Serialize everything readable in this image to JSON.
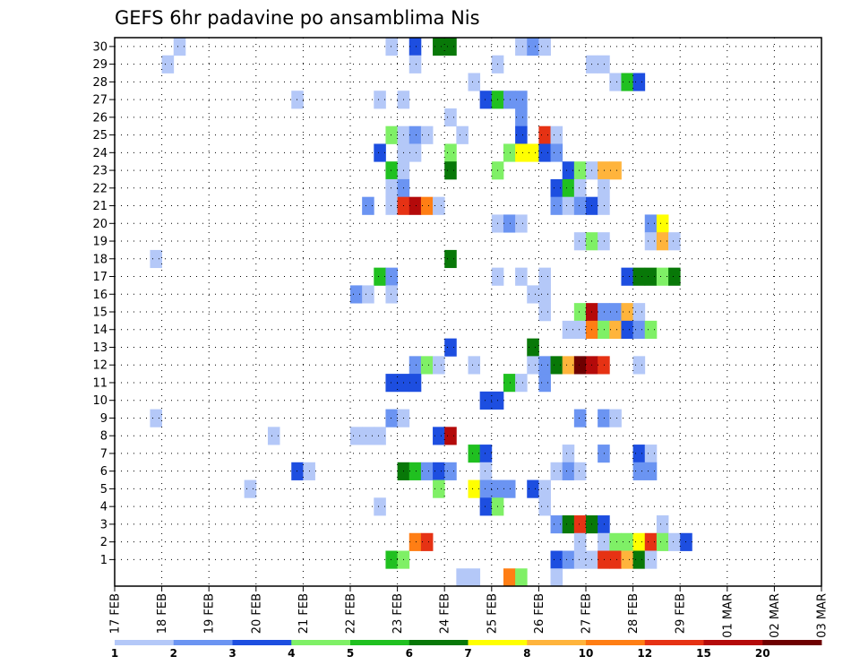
{
  "chart_data": {
    "type": "heatmap",
    "title": "GEFS 6hr padavine po ansamblima Nis",
    "xlabel": "",
    "ylabel": "",
    "x_ticks": [
      "17 FEB",
      "18 FEB",
      "19 FEB",
      "20 FEB",
      "21 FEB",
      "22 FEB",
      "23 FEB",
      "24 FEB",
      "25 FEB",
      "26 FEB",
      "27 FEB",
      "28 FEB",
      "29 FEB",
      "01 MAR",
      "02 MAR",
      "03 MAR"
    ],
    "y_ticks": [
      "1",
      "2",
      "3",
      "4",
      "5",
      "6",
      "7",
      "8",
      "9",
      "10",
      "11",
      "12",
      "13",
      "14",
      "15",
      "16",
      "17",
      "18",
      "19",
      "20",
      "21",
      "22",
      "23",
      "24",
      "25",
      "26",
      "27",
      "28",
      "29",
      "30"
    ],
    "time_steps_per_day": 4,
    "grid": "dotted",
    "legend_placement": "bottom",
    "legend": {
      "labels": [
        "1",
        "2",
        "3",
        "4",
        "5",
        "6",
        "7",
        "8",
        "10",
        "12",
        "15",
        "20"
      ],
      "colors": [
        "#b4c8f8",
        "#6b94f2",
        "#1d4ee0",
        "#7ff066",
        "#20c020",
        "#087808",
        "#ffff00",
        "#ffb43c",
        "#ff7e14",
        "#e63214",
        "#b40a0a",
        "#6e0000"
      ]
    },
    "cells_note": "each cell = [time step index from 17 FEB 00Z (6h steps), ensemble member, color class 1-12]",
    "cells": [
      [
        5,
        30,
        1
      ],
      [
        23,
        30,
        1
      ],
      [
        25,
        30,
        3
      ],
      [
        27,
        30,
        6
      ],
      [
        28,
        30,
        6
      ],
      [
        34,
        30,
        1
      ],
      [
        35,
        30,
        2
      ],
      [
        36,
        30,
        1
      ],
      [
        4,
        29,
        1
      ],
      [
        25,
        29,
        1
      ],
      [
        32,
        29,
        1
      ],
      [
        40,
        29,
        1
      ],
      [
        41,
        29,
        1
      ],
      [
        30,
        28,
        1
      ],
      [
        42,
        28,
        1
      ],
      [
        43,
        28,
        5
      ],
      [
        44,
        28,
        3
      ],
      [
        15,
        27,
        1
      ],
      [
        22,
        27,
        1
      ],
      [
        24,
        27,
        1
      ],
      [
        31,
        27,
        3
      ],
      [
        32,
        27,
        5
      ],
      [
        33,
        27,
        2
      ],
      [
        34,
        27,
        2
      ],
      [
        28,
        26,
        1
      ],
      [
        34,
        26,
        2
      ],
      [
        23,
        25,
        4
      ],
      [
        24,
        25,
        1
      ],
      [
        25,
        25,
        2
      ],
      [
        26,
        25,
        1
      ],
      [
        29,
        25,
        1
      ],
      [
        34,
        25,
        3
      ],
      [
        36,
        25,
        10
      ],
      [
        37,
        25,
        1
      ],
      [
        22,
        24,
        3
      ],
      [
        24,
        24,
        1
      ],
      [
        25,
        24,
        1
      ],
      [
        28,
        24,
        4
      ],
      [
        33,
        24,
        4
      ],
      [
        34,
        24,
        7
      ],
      [
        35,
        24,
        7
      ],
      [
        36,
        24,
        3
      ],
      [
        37,
        24,
        2
      ],
      [
        23,
        23,
        5
      ],
      [
        24,
        23,
        1
      ],
      [
        28,
        23,
        6
      ],
      [
        32,
        23,
        4
      ],
      [
        38,
        23,
        3
      ],
      [
        39,
        23,
        4
      ],
      [
        40,
        23,
        1
      ],
      [
        41,
        23,
        8
      ],
      [
        42,
        23,
        8
      ],
      [
        23,
        22,
        1
      ],
      [
        24,
        22,
        2
      ],
      [
        37,
        22,
        3
      ],
      [
        38,
        22,
        5
      ],
      [
        39,
        22,
        1
      ],
      [
        41,
        22,
        1
      ],
      [
        21,
        21,
        2
      ],
      [
        23,
        21,
        1
      ],
      [
        24,
        21,
        10
      ],
      [
        25,
        21,
        11
      ],
      [
        26,
        21,
        9
      ],
      [
        27,
        21,
        1
      ],
      [
        37,
        21,
        2
      ],
      [
        38,
        21,
        1
      ],
      [
        39,
        21,
        2
      ],
      [
        40,
        21,
        3
      ],
      [
        41,
        21,
        1
      ],
      [
        32,
        20,
        1
      ],
      [
        33,
        20,
        2
      ],
      [
        34,
        20,
        1
      ],
      [
        45,
        20,
        2
      ],
      [
        46,
        20,
        7
      ],
      [
        39,
        19,
        1
      ],
      [
        40,
        19,
        4
      ],
      [
        41,
        19,
        1
      ],
      [
        45,
        19,
        1
      ],
      [
        46,
        19,
        8
      ],
      [
        47,
        19,
        1
      ],
      [
        3,
        18,
        1
      ],
      [
        28,
        18,
        6
      ],
      [
        22,
        17,
        5
      ],
      [
        23,
        17,
        2
      ],
      [
        32,
        17,
        1
      ],
      [
        34,
        17,
        1
      ],
      [
        36,
        17,
        1
      ],
      [
        43,
        17,
        3
      ],
      [
        44,
        17,
        6
      ],
      [
        45,
        17,
        6
      ],
      [
        46,
        17,
        4
      ],
      [
        47,
        17,
        6
      ],
      [
        20,
        16,
        2
      ],
      [
        21,
        16,
        1
      ],
      [
        23,
        16,
        1
      ],
      [
        35,
        16,
        1
      ],
      [
        36,
        16,
        1
      ],
      [
        36,
        15,
        1
      ],
      [
        39,
        15,
        4
      ],
      [
        40,
        15,
        11
      ],
      [
        41,
        15,
        2
      ],
      [
        42,
        15,
        2
      ],
      [
        43,
        15,
        8
      ],
      [
        44,
        15,
        1
      ],
      [
        38,
        14,
        1
      ],
      [
        39,
        14,
        1
      ],
      [
        40,
        14,
        9
      ],
      [
        41,
        14,
        4
      ],
      [
        42,
        14,
        8
      ],
      [
        43,
        14,
        3
      ],
      [
        44,
        14,
        2
      ],
      [
        45,
        14,
        4
      ],
      [
        28,
        13,
        3
      ],
      [
        35,
        13,
        6
      ],
      [
        25,
        12,
        2
      ],
      [
        26,
        12,
        4
      ],
      [
        27,
        12,
        1
      ],
      [
        30,
        12,
        1
      ],
      [
        35,
        12,
        1
      ],
      [
        36,
        12,
        2
      ],
      [
        37,
        12,
        6
      ],
      [
        38,
        12,
        8
      ],
      [
        39,
        12,
        12
      ],
      [
        40,
        12,
        11
      ],
      [
        41,
        12,
        10
      ],
      [
        44,
        12,
        1
      ],
      [
        23,
        11,
        3
      ],
      [
        24,
        11,
        3
      ],
      [
        25,
        11,
        3
      ],
      [
        33,
        11,
        5
      ],
      [
        34,
        11,
        1
      ],
      [
        36,
        11,
        2
      ],
      [
        31,
        10,
        3
      ],
      [
        32,
        10,
        3
      ],
      [
        3,
        9,
        1
      ],
      [
        23,
        9,
        2
      ],
      [
        24,
        9,
        1
      ],
      [
        39,
        9,
        2
      ],
      [
        41,
        9,
        2
      ],
      [
        42,
        9,
        1
      ],
      [
        13,
        8,
        1
      ],
      [
        20,
        8,
        1
      ],
      [
        21,
        8,
        1
      ],
      [
        22,
        8,
        1
      ],
      [
        27,
        8,
        3
      ],
      [
        28,
        8,
        11
      ],
      [
        30,
        7,
        5
      ],
      [
        31,
        7,
        3
      ],
      [
        38,
        7,
        1
      ],
      [
        41,
        7,
        2
      ],
      [
        44,
        7,
        3
      ],
      [
        45,
        7,
        1
      ],
      [
        15,
        6,
        3
      ],
      [
        16,
        6,
        1
      ],
      [
        24,
        6,
        6
      ],
      [
        25,
        6,
        5
      ],
      [
        26,
        6,
        2
      ],
      [
        27,
        6,
        3
      ],
      [
        28,
        6,
        2
      ],
      [
        31,
        6,
        1
      ],
      [
        37,
        6,
        1
      ],
      [
        38,
        6,
        2
      ],
      [
        39,
        6,
        1
      ],
      [
        44,
        6,
        2
      ],
      [
        45,
        6,
        2
      ],
      [
        11,
        5,
        1
      ],
      [
        27,
        5,
        4
      ],
      [
        30,
        5,
        7
      ],
      [
        31,
        5,
        2
      ],
      [
        32,
        5,
        2
      ],
      [
        33,
        5,
        2
      ],
      [
        35,
        5,
        3
      ],
      [
        36,
        5,
        1
      ],
      [
        22,
        4,
        1
      ],
      [
        31,
        4,
        3
      ],
      [
        32,
        4,
        4
      ],
      [
        36,
        4,
        1
      ],
      [
        37,
        3,
        2
      ],
      [
        38,
        3,
        6
      ],
      [
        39,
        3,
        10
      ],
      [
        40,
        3,
        6
      ],
      [
        41,
        3,
        3
      ],
      [
        46,
        3,
        1
      ],
      [
        25,
        2,
        9
      ],
      [
        26,
        2,
        10
      ],
      [
        39,
        2,
        1
      ],
      [
        41,
        2,
        1
      ],
      [
        42,
        2,
        4
      ],
      [
        43,
        2,
        4
      ],
      [
        44,
        2,
        7
      ],
      [
        45,
        2,
        10
      ],
      [
        46,
        2,
        4
      ],
      [
        47,
        2,
        1
      ],
      [
        48,
        2,
        3
      ],
      [
        23,
        1,
        5
      ],
      [
        24,
        1,
        4
      ],
      [
        37,
        1,
        3
      ],
      [
        38,
        1,
        2
      ],
      [
        39,
        1,
        1
      ],
      [
        40,
        1,
        1
      ],
      [
        41,
        1,
        10
      ],
      [
        42,
        1,
        10
      ],
      [
        43,
        1,
        8
      ],
      [
        44,
        1,
        6
      ],
      [
        45,
        1,
        1
      ],
      [
        29,
        0,
        1
      ],
      [
        30,
        0,
        1
      ],
      [
        33,
        0,
        9
      ],
      [
        34,
        0,
        4
      ],
      [
        37,
        0,
        1
      ]
    ]
  }
}
